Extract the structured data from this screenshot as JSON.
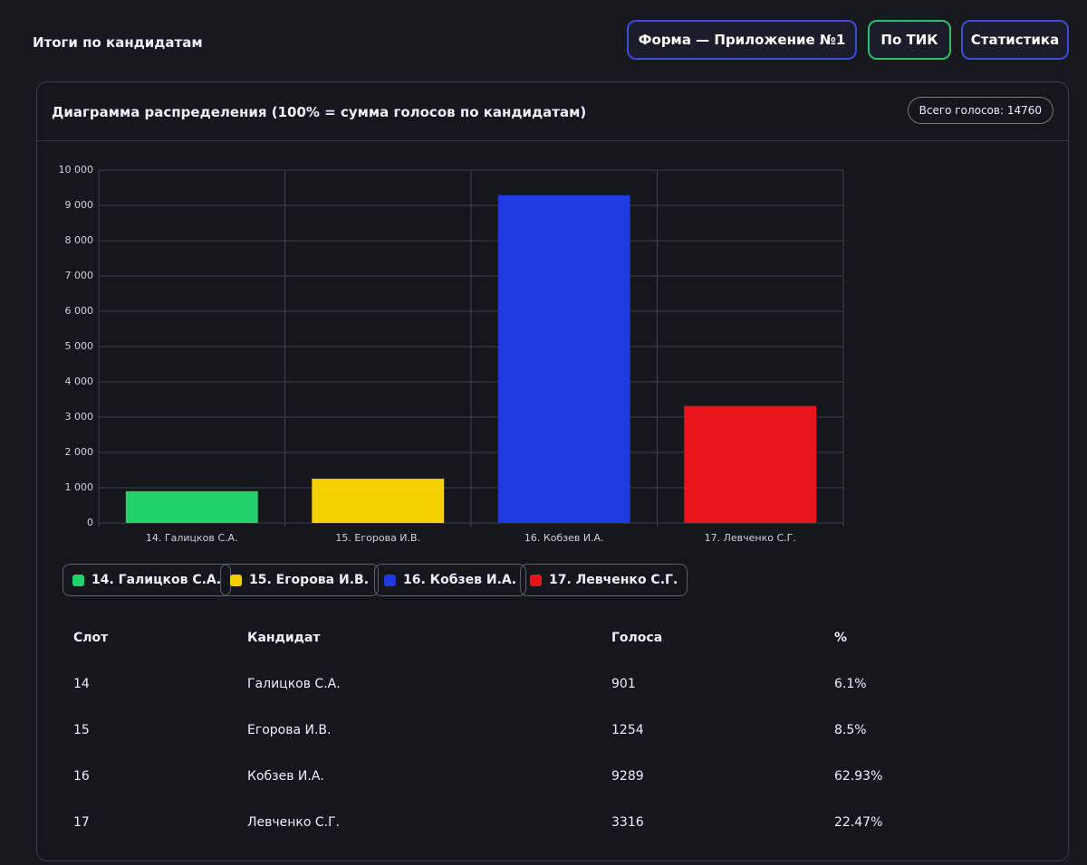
{
  "header": {
    "title": "Итоги по кандидатам",
    "buttons": [
      "Форма — Приложение №1",
      "По ТИК",
      "Статистика"
    ]
  },
  "panel": {
    "title": "Диаграмма распределения (100% = сумма голосов по кандидатам)",
    "total": "Всего голосов: 14760"
  },
  "chart_data": {
    "type": "bar",
    "categories": [
      "14. Галицков С.А.",
      "15. Егорова И.В.",
      "16. Кобзев И.А.",
      "17. Левченко С.Г."
    ],
    "values": [
      901,
      1254,
      9289,
      3316
    ],
    "colors": [
      "#22d36b",
      "#f5d000",
      "#1f3ae0",
      "#e8161c"
    ],
    "ylim": [
      0,
      10000
    ],
    "yticks": [
      0,
      {
        "value": 1000,
        "label": "1 000"
      },
      {
        "value": 2000,
        "label": "2 000"
      },
      {
        "value": 3000,
        "label": "3 000"
      },
      {
        "value": 4000,
        "label": "4 000"
      },
      {
        "value": 5000,
        "label": "5 000"
      },
      {
        "value": 6000,
        "label": "6 000"
      },
      {
        "value": 7000,
        "label": "7 000"
      },
      {
        "value": 8000,
        "label": "8 000"
      },
      {
        "value": 9000,
        "label": "9 000"
      },
      {
        "value": 10000,
        "label": "10 000"
      }
    ],
    "grid": true
  },
  "table": {
    "columns": [
      "Слот",
      "Кандидат",
      "Голоса",
      "%"
    ],
    "rows": [
      [
        "14",
        "Галицков С.А.",
        "901",
        "6.1%"
      ],
      [
        "15",
        "Егорова И.В.",
        "1254",
        "8.5%"
      ],
      [
        "16",
        "Кобзев И.А.",
        "9289",
        "62.93%"
      ],
      [
        "17",
        "Левченко С.Г.",
        "3316",
        "22.47%"
      ]
    ]
  }
}
